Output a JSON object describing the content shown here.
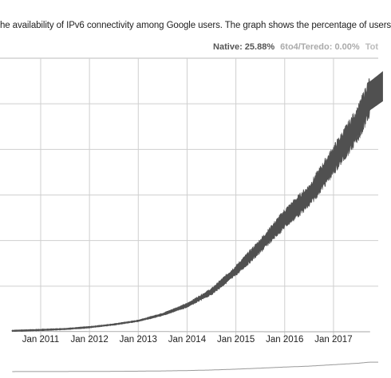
{
  "description": "he availability of IPv6 connectivity among Google users. The graph shows the percentage of users",
  "legend": {
    "native_label": "Native:",
    "native_value": "25.88%",
    "teredo_label": "6to4/Teredo:",
    "teredo_value": "0.00%",
    "total_label": "Tot"
  },
  "colors": {
    "native": "#505050",
    "teredo": "#b8b8b8",
    "grid": "#cfcfcf"
  },
  "chart_data": {
    "type": "line",
    "xlabel": "",
    "ylabel": "",
    "x_tick_labels": [
      "Jan 2011",
      "Jan 2012",
      "Jan 2013",
      "Jan 2014",
      "Jan 2015",
      "Jan 2016",
      "Jan 2017"
    ],
    "x_range": [
      "2010-03",
      "2017-12"
    ],
    "y_range": [
      0,
      30
    ],
    "grid": true,
    "series": [
      {
        "name": "Native",
        "x": [
          "2010-06",
          "2011-01",
          "2011-07",
          "2012-01",
          "2012-07",
          "2013-01",
          "2013-07",
          "2014-01",
          "2014-07",
          "2015-01",
          "2015-07",
          "2016-01",
          "2016-07",
          "2017-01",
          "2017-07",
          "2017-10"
        ],
        "values": [
          0.1,
          0.2,
          0.3,
          0.5,
          0.8,
          1.2,
          1.9,
          2.9,
          4.4,
          6.7,
          9.4,
          12.4,
          14.9,
          18.8,
          22.8,
          25.88
        ]
      },
      {
        "name": "6to4/Teredo",
        "x": [
          "2010-06",
          "2012-01",
          "2014-01",
          "2015-01",
          "2016-01",
          "2017-01",
          "2017-10"
        ],
        "values": [
          0.05,
          0.03,
          0.02,
          0.01,
          0.0,
          0.0,
          0.0
        ]
      }
    ]
  }
}
